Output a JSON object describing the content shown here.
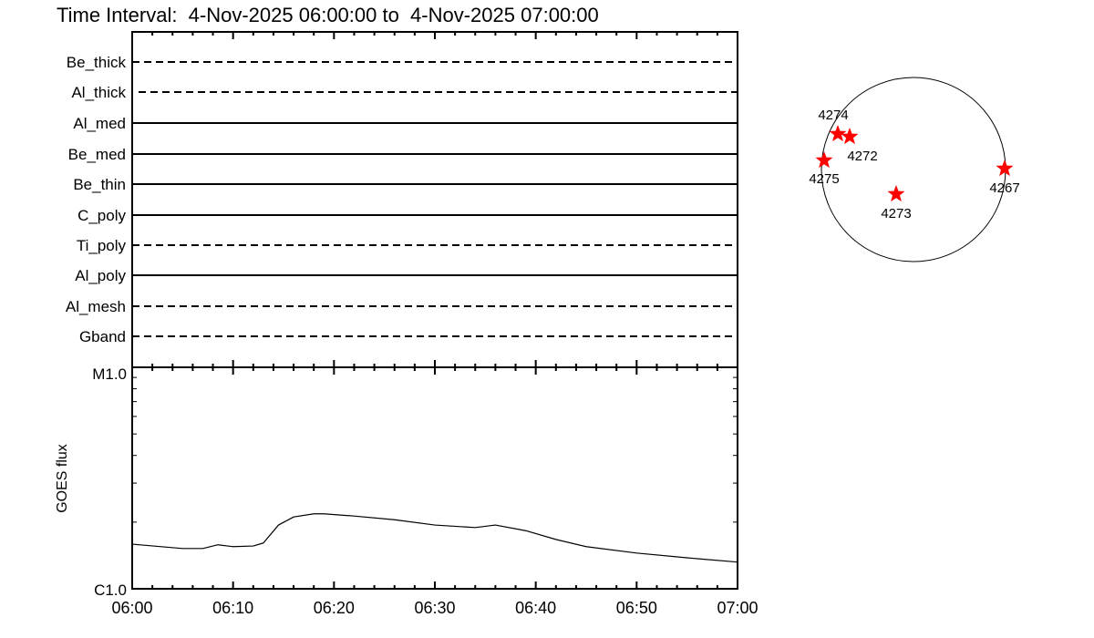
{
  "title": "Time Interval:  4-Nov-2025 06:00:00 to  4-Nov-2025 07:00:00",
  "colors": {
    "axes": "#000000",
    "stars": "#ff0000",
    "background": "#ffffff"
  },
  "chart_data": [
    {
      "type": "timeline",
      "x_ticks": [
        "06:00",
        "06:10",
        "06:20",
        "06:30",
        "06:40",
        "06:50",
        "07:00"
      ],
      "xlim": [
        "06:00",
        "07:00"
      ],
      "filters": [
        {
          "name": "Be_thick",
          "style": "dashed"
        },
        {
          "name": "Al_thick",
          "style": "dashed"
        },
        {
          "name": "Al_med",
          "style": "solid"
        },
        {
          "name": "Be_med",
          "style": "solid"
        },
        {
          "name": "Be_thin",
          "style": "solid"
        },
        {
          "name": "C_poly",
          "style": "solid"
        },
        {
          "name": "Ti_poly",
          "style": "dashed"
        },
        {
          "name": "Al_poly",
          "style": "solid"
        },
        {
          "name": "Al_mesh",
          "style": "dashed"
        },
        {
          "name": "Gband",
          "style": "dashed"
        }
      ]
    },
    {
      "type": "line",
      "ylabel": "GOES flux",
      "yscale": "log",
      "ylim": [
        1e-06,
        1e-05
      ],
      "y_tick_labels": [
        "C1.0",
        "M1.0"
      ],
      "x_ticks": [
        "06:00",
        "06:10",
        "06:20",
        "06:30",
        "06:40",
        "06:50",
        "07:00"
      ],
      "x_minutes": [
        0,
        5,
        7,
        8.5,
        10,
        12,
        13,
        14.5,
        16,
        18,
        19,
        22,
        26,
        30,
        34,
        36,
        39,
        42,
        45,
        50,
        55,
        60
      ],
      "values": [
        1.59e-06,
        1.52e-06,
        1.52e-06,
        1.58e-06,
        1.55e-06,
        1.56e-06,
        1.61e-06,
        1.94e-06,
        2.11e-06,
        2.18e-06,
        2.18e-06,
        2.13e-06,
        2.05e-06,
        1.94e-06,
        1.89e-06,
        1.94e-06,
        1.83e-06,
        1.67e-06,
        1.55e-06,
        1.45e-06,
        1.38e-06,
        1.32e-06
      ]
    },
    {
      "type": "scatter",
      "description_labels": [
        "4274",
        "4272",
        "4275",
        "4267",
        "4273"
      ]
    }
  ]
}
